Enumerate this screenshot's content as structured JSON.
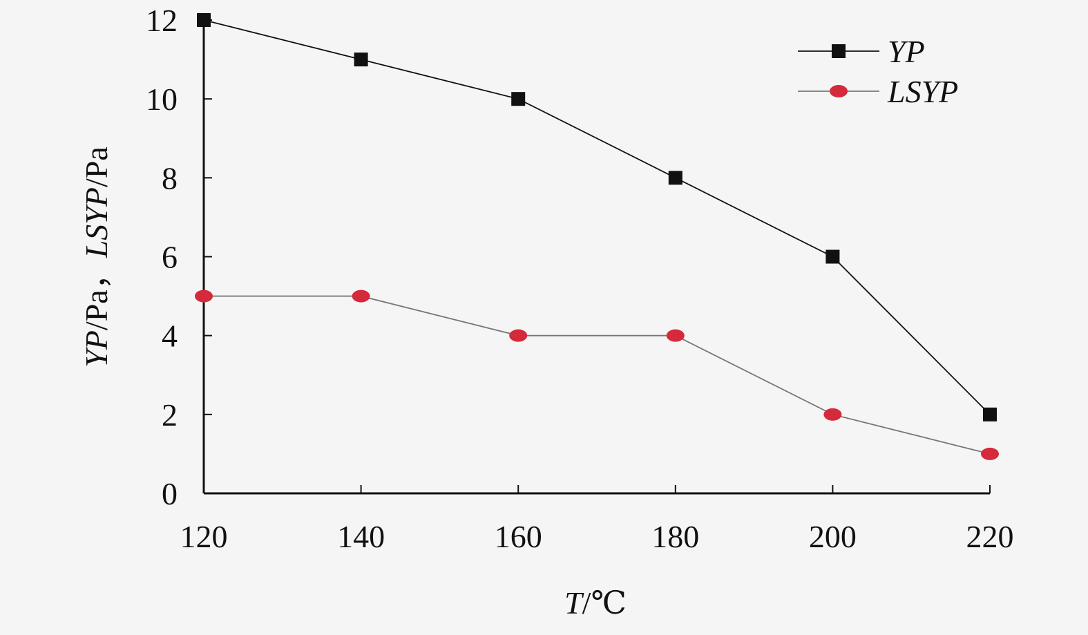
{
  "chart_data": {
    "type": "line",
    "x": [
      120,
      140,
      160,
      180,
      200,
      220
    ],
    "series": [
      {
        "name": "YP",
        "values": [
          12,
          11,
          10,
          8,
          6,
          2
        ],
        "marker": "square",
        "line_color": "#111111",
        "marker_color": "#111111"
      },
      {
        "name": "LSYP",
        "values": [
          5,
          5,
          4,
          4,
          2,
          1
        ],
        "marker": "circle",
        "line_color": "#777777",
        "marker_color": "#d42a3c"
      }
    ],
    "x_ticks": [
      "120",
      "140",
      "160",
      "180",
      "200",
      "220"
    ],
    "y_ticks": [
      "0",
      "2",
      "4",
      "6",
      "8",
      "10",
      "12"
    ],
    "xlim": [
      120,
      220
    ],
    "ylim": [
      0,
      12
    ],
    "xlabel": {
      "italic": "T",
      "normal": "/℃"
    },
    "ylabel": {
      "italic1": "YP",
      "normal1": "/Pa，",
      "italic2": "LSYP",
      "normal2": "/Pa"
    },
    "grid": false,
    "legend_position": "top-right",
    "title": ""
  }
}
